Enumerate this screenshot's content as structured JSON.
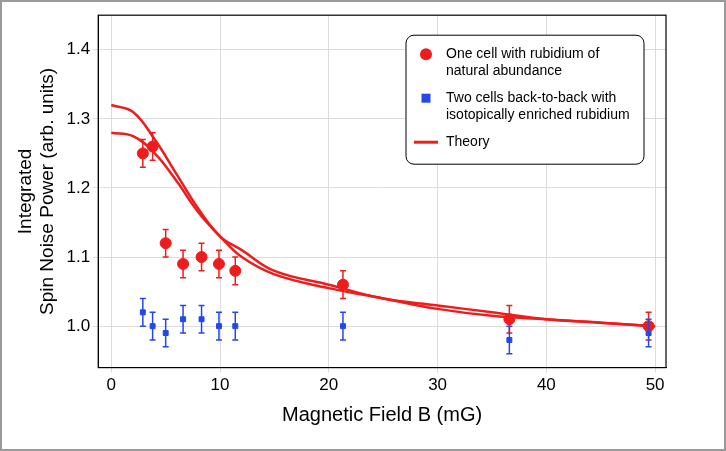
{
  "chart_data": {
    "type": "scatter",
    "x_label": "Magnetic Field B (mG)",
    "y_label": [
      "Integrated",
      "Spin Noise Power (arb. units)"
    ],
    "xlim": [
      -1.2,
      51
    ],
    "xticks": [
      0,
      10,
      20,
      30,
      40,
      50
    ],
    "ylim": [
      0.94,
      1.45
    ],
    "yticks": [
      {
        "value": 1,
        "label": "1.0"
      },
      1.1,
      1.2,
      1.3,
      1.4
    ],
    "grid": true,
    "legend": "top right",
    "series": [
      {
        "name": "One cell with rubidium of natural abundance",
        "type": "scatter",
        "marker": "circle",
        "color": "#ee1c1c",
        "x": [
          2.9,
          3.8,
          5.0,
          6.6,
          8.3,
          9.9,
          11.4,
          21.3,
          36.6,
          49.4
        ],
        "values": [
          1.25,
          1.26,
          1.12,
          1.09,
          1.1,
          1.09,
          1.08,
          1.06,
          1.01,
          1.0
        ],
        "errors": [
          0.02,
          0.02,
          0.02,
          0.02,
          0.02,
          0.02,
          0.02,
          0.02,
          0.02,
          0.02
        ]
      },
      {
        "name": "Two cells back-to-back with isotopically enriched rubidium",
        "type": "scatter",
        "marker": "square",
        "color": "#2348e8",
        "x": [
          2.9,
          3.8,
          5.0,
          6.6,
          8.3,
          9.9,
          11.4,
          21.3,
          36.6,
          49.4
        ],
        "values": [
          1.02,
          1.0,
          0.99,
          1.01,
          1.01,
          1.0,
          1.0,
          1.0,
          0.98,
          0.99
        ],
        "errors": [
          0.02,
          0.02,
          0.02,
          0.02,
          0.02,
          0.02,
          0.02,
          0.02,
          0.02,
          0.02
        ]
      },
      {
        "name": "Theory",
        "type": "line",
        "line_style": "solid",
        "color": "#ee1c1c",
        "x": [
          0,
          2,
          4,
          6,
          8,
          10,
          12,
          15,
          20,
          25,
          30,
          35,
          40,
          45,
          50
        ],
        "values": [
          1.32,
          1.31,
          1.27,
          1.22,
          1.17,
          1.13,
          1.11,
          1.08,
          1.06,
          1.04,
          1.03,
          1.02,
          1.01,
          1.005,
          1.0
        ]
      },
      {
        "name": "Theory",
        "type": "line",
        "line_style": "solid",
        "color": "#ee1c1c",
        "x": [
          0,
          2,
          4,
          6,
          8,
          10,
          12,
          15,
          20,
          25,
          30,
          35,
          40,
          45,
          50
        ],
        "values": [
          1.28,
          1.275,
          1.25,
          1.21,
          1.165,
          1.13,
          1.1,
          1.075,
          1.055,
          1.04,
          1.025,
          1.015,
          1.01,
          1.005,
          1.0
        ]
      }
    ]
  }
}
